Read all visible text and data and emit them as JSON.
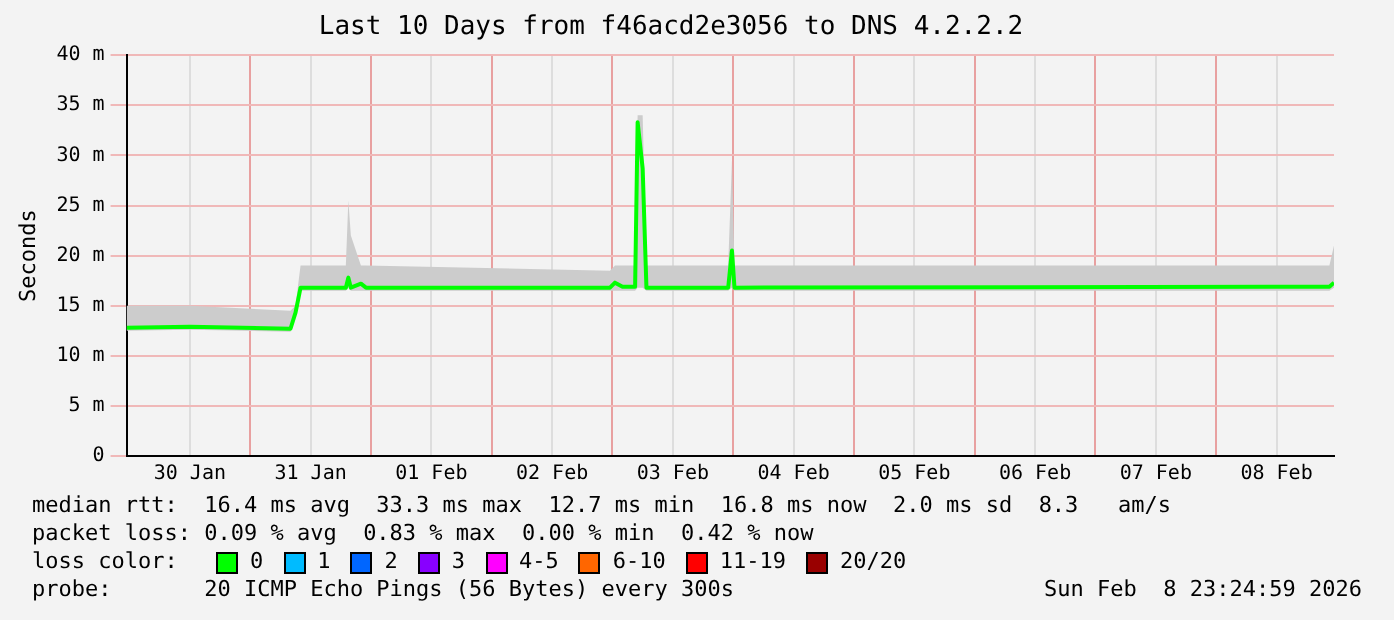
{
  "chart_data": {
    "type": "line",
    "title": "Last 10 Days from f46acd2e3056 to DNS 4.2.2.2",
    "ylabel": "Seconds",
    "x": [
      "2026-01-29T23:25",
      "2026-01-30T12:00",
      "2026-01-31T08:00",
      "2026-01-31T09:00",
      "2026-01-31T10:00",
      "2026-01-31T19:00",
      "2026-01-31T19:30",
      "2026-01-31T20:00",
      "2026-01-31T22:00",
      "2026-01-31T23:00",
      "2026-02-02T23:30",
      "2026-02-03T00:30",
      "2026-02-03T02:00",
      "2026-02-03T04:30",
      "2026-02-03T05:00",
      "2026-02-03T06:00",
      "2026-02-03T06:45",
      "2026-02-03T23:00",
      "2026-02-03T23:45",
      "2026-02-04T00:15",
      "2026-02-08T22:30",
      "2026-02-08T23:25"
    ],
    "series": [
      {
        "color": "#00ff00",
        "values": [
          12.8,
          12.9,
          12.7,
          14.3,
          16.8,
          16.8,
          17.8,
          16.8,
          17.2,
          16.8,
          16.8,
          17.3,
          16.9,
          16.9,
          33.3,
          28.7,
          16.8,
          16.8,
          20.5,
          16.8,
          16.9,
          17.3
        ],
        "lower": [
          12.5,
          12.6,
          12.4,
          14,
          16.5,
          16.5,
          16.8,
          16.5,
          16.5,
          16.5,
          16.5,
          16.5,
          16.5,
          16.5,
          16.8,
          16.8,
          16.5,
          16.5,
          16.8,
          16.5,
          16.5,
          16.8
        ],
        "upper": [
          15,
          15,
          14.5,
          15,
          19,
          19,
          25.5,
          22,
          19,
          19,
          18.5,
          19,
          19,
          19,
          34,
          34,
          19,
          19,
          29.5,
          19,
          19,
          21
        ]
      }
    ],
    "xlim": [
      "2026-01-29T23:25",
      "2026-02-08T23:25"
    ],
    "xticks": [
      {
        "value": "2026-01-30T12:00",
        "label": "30 Jan"
      },
      {
        "value": "2026-01-31T00:00",
        "label": null
      },
      {
        "value": "2026-01-31T12:00",
        "label": "31 Jan"
      },
      {
        "value": "2026-02-01T00:00",
        "label": null
      },
      {
        "value": "2026-02-01T12:00",
        "label": "01 Feb"
      },
      {
        "value": "2026-02-02T00:00",
        "label": null
      },
      {
        "value": "2026-02-02T12:00",
        "label": "02 Feb"
      },
      {
        "value": "2026-02-03T00:00",
        "label": null
      },
      {
        "value": "2026-02-03T12:00",
        "label": "03 Feb"
      },
      {
        "value": "2026-02-04T00:00",
        "label": null
      },
      {
        "value": "2026-02-04T12:00",
        "label": "04 Feb"
      },
      {
        "value": "2026-02-05T00:00",
        "label": null
      },
      {
        "value": "2026-02-05T12:00",
        "label": "05 Feb"
      },
      {
        "value": "2026-02-06T00:00",
        "label": null
      },
      {
        "value": "2026-02-06T12:00",
        "label": "06 Feb"
      },
      {
        "value": "2026-02-07T00:00",
        "label": null
      },
      {
        "value": "2026-02-07T12:00",
        "label": "07 Feb"
      },
      {
        "value": "2026-02-08T00:00",
        "label": null
      },
      {
        "value": "2026-02-08T12:00",
        "label": "08 Feb"
      }
    ],
    "ylim": [
      0,
      40
    ],
    "yticks": [
      0,
      {
        "value": 5,
        "label": "5 m"
      },
      {
        "value": 10,
        "label": "10 m"
      },
      {
        "value": 15,
        "label": "15 m"
      },
      {
        "value": 20,
        "label": "20 m"
      },
      {
        "value": 25,
        "label": "25 m"
      },
      {
        "value": 30,
        "label": "30 m"
      },
      {
        "value": 35,
        "label": "35 m"
      },
      {
        "value": 40,
        "label": "40 m"
      }
    ],
    "grid": true,
    "legend": false,
    "marker": "none",
    "line_style": "solid",
    "annotations": [
      "median rtt:  16.4 ms avg  33.3 ms max  12.7 ms min  16.8 ms now  2.0 ms sd  8.3   am/s",
      "packet loss: 0.09 % avg  0.83 % max  0.00 % min  0.42 % now",
      "loss color:",
      "0",
      "1",
      "2",
      "3",
      "4-5",
      "6-10",
      "11-19",
      "20/20",
      "probe:       20 ICMP Echo Pings (56 Bytes) every 300s",
      "Sun Feb  8 23:24:59 2026"
    ]
  }
}
